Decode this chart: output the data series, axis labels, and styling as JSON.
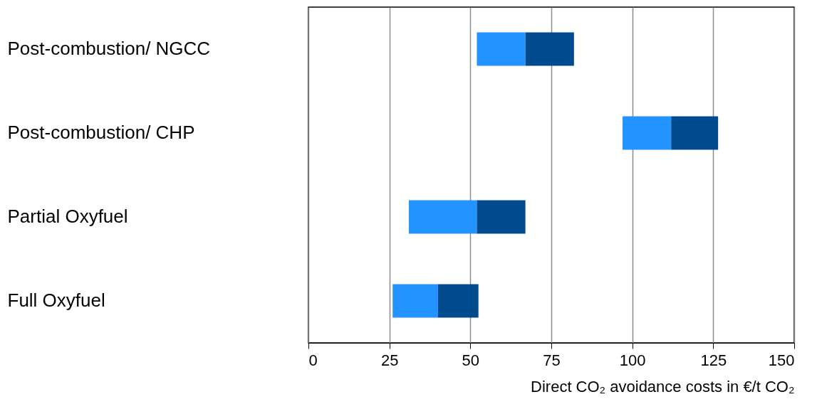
{
  "chart_data": {
    "type": "bar",
    "orientation": "horizontal",
    "categories": [
      "Post-combustion/ NGCC",
      "Post-combustion/ CHP",
      "Partial Oxyfuel",
      "Full Oxyfuel"
    ],
    "series": [
      {
        "color": "#2394ff",
        "base": [
          52,
          97,
          31,
          26
        ],
        "values": [
          15,
          15,
          21,
          14
        ]
      },
      {
        "color": "#014a8e",
        "base": [
          67,
          112,
          52,
          40
        ],
        "values": [
          15,
          14.5,
          15,
          12.5
        ]
      }
    ],
    "xlabel": "Direct CO₂ avoidance costs in €/t CO₂",
    "xlim": [
      0,
      150
    ],
    "xticks": [
      0,
      25,
      50,
      75,
      100,
      125,
      150
    ],
    "grid": "x"
  }
}
